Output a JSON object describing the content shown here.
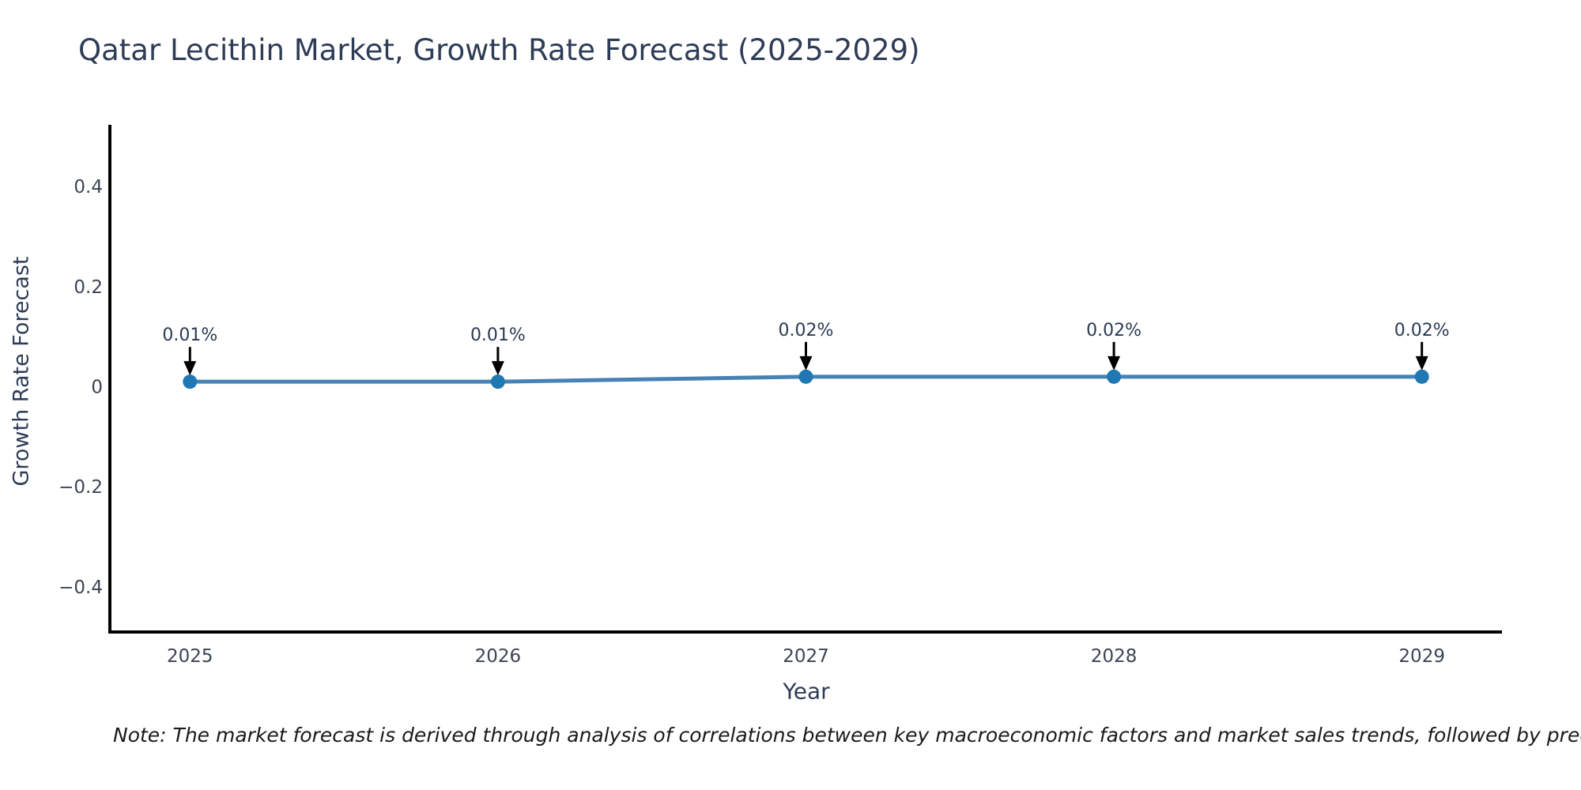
{
  "title": "Qatar Lecithin Market, Growth Rate Forecast (2025-2029)",
  "note": "Note: The market forecast is derived through analysis of correlations between key macroeconomic factors and market sales trends, followed by predictive modeling to project future sa",
  "chart_data": {
    "type": "line",
    "title": "Qatar Lecithin Market, Growth Rate Forecast (2025-2029)",
    "xlabel": "Year",
    "ylabel": "Growth Rate Forecast",
    "x": [
      2025,
      2026,
      2027,
      2028,
      2029
    ],
    "series": [
      {
        "name": "Growth Rate Forecast",
        "values": [
          0.01,
          0.01,
          0.02,
          0.02,
          0.02
        ],
        "point_labels": [
          "0.01%",
          "0.01%",
          "0.02%",
          "0.02%",
          "0.02%"
        ]
      }
    ],
    "xlim": [
      2024.74,
      2029.26
    ],
    "ylim": [
      -0.49,
      0.52
    ],
    "xticks": {
      "values": [
        2025,
        2026,
        2027,
        2028,
        2029
      ],
      "labels": [
        "2025",
        "2026",
        "2027",
        "2028",
        "2029"
      ]
    },
    "yticks": {
      "values": [
        0.4,
        0.2,
        0,
        -0.2,
        -0.4
      ],
      "labels": [
        "0.4",
        "0.2",
        "0",
        "−0.2",
        "−0.4"
      ]
    },
    "grid": false,
    "legend": false,
    "annotation_style": "down-arrow-to-point",
    "colors": {
      "line": "#4682b4",
      "marker": "#1f77b4",
      "axis": "#000000",
      "tick_label": "#3c4454",
      "title": "#2e3c56",
      "axis_title": "#2e3c56",
      "annotation_text": "#2b3a52",
      "arrow": "#000000",
      "note_text": "#1a1a1a",
      "background": "#ffffff"
    }
  }
}
